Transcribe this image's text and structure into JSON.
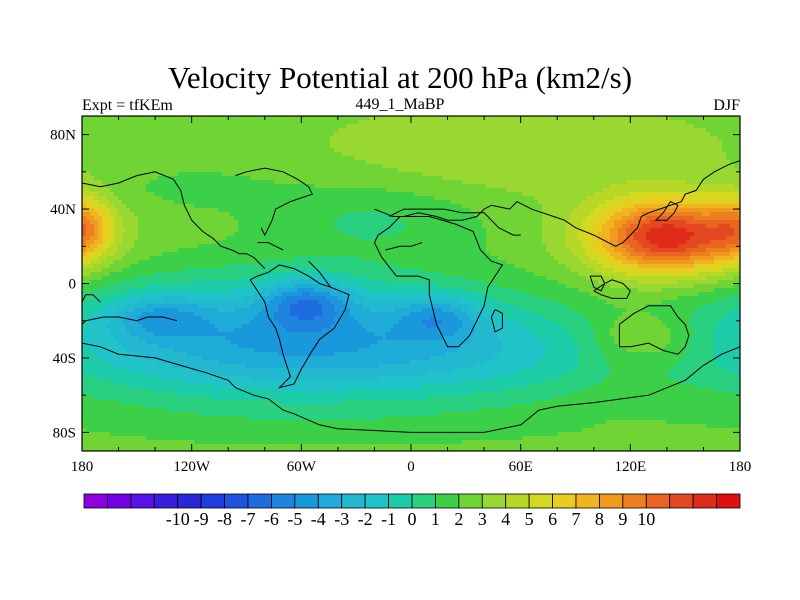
{
  "chart_data": {
    "type": "heatmap",
    "title": "Velocity Potential at 200 hPa (km2/s)",
    "subtitle_left": "Expt = tfKEm",
    "subtitle_center": "449_1_MaBP",
    "subtitle_right": "DJF",
    "x_ticks": [
      "180",
      "120W",
      "60W",
      "0",
      "60E",
      "120E",
      "180"
    ],
    "y_ticks": [
      "80N",
      "40N",
      "0",
      "40S",
      "80S"
    ],
    "xlim": [
      -180,
      180
    ],
    "ylim": [
      -90,
      90
    ],
    "colorbar_labels": [
      "-10",
      "-9",
      "-8",
      "-7",
      "-6",
      "-5",
      "-4",
      "-3",
      "-2",
      "-1",
      "0",
      "1",
      "2",
      "3",
      "4",
      "5",
      "6",
      "7",
      "8",
      "9",
      "10"
    ],
    "colorbar_range": [
      -11,
      11
    ],
    "palette": [
      "#8b00e0",
      "#7400e6",
      "#5a10e8",
      "#3a1ee0",
      "#2828d8",
      "#1e3ce0",
      "#1e54e0",
      "#1e6ce0",
      "#1e84e0",
      "#1a98dc",
      "#20acd8",
      "#22b8d0",
      "#20c4c8",
      "#1ccca8",
      "#28d080",
      "#3cd048",
      "#70d434",
      "#98d830",
      "#b8d828",
      "#d4d820",
      "#e8cc20",
      "#f0b420",
      "#f09a20",
      "#ec8020",
      "#e86420",
      "#e44820",
      "#e02c18",
      "#dc1010"
    ],
    "field_features": [
      {
        "kind": "minimum",
        "lon": -57,
        "lat": -10,
        "value": -7
      },
      {
        "kind": "minimum",
        "lon": -135,
        "lat": -18,
        "value": -6
      },
      {
        "kind": "minimum",
        "lon": 15,
        "lat": -18,
        "value": -6
      },
      {
        "kind": "maximum",
        "lon": 140,
        "lat": 25,
        "value": 10
      },
      {
        "kind": "maximum",
        "lon": -178,
        "lat": 30,
        "value": 7
      }
    ]
  }
}
